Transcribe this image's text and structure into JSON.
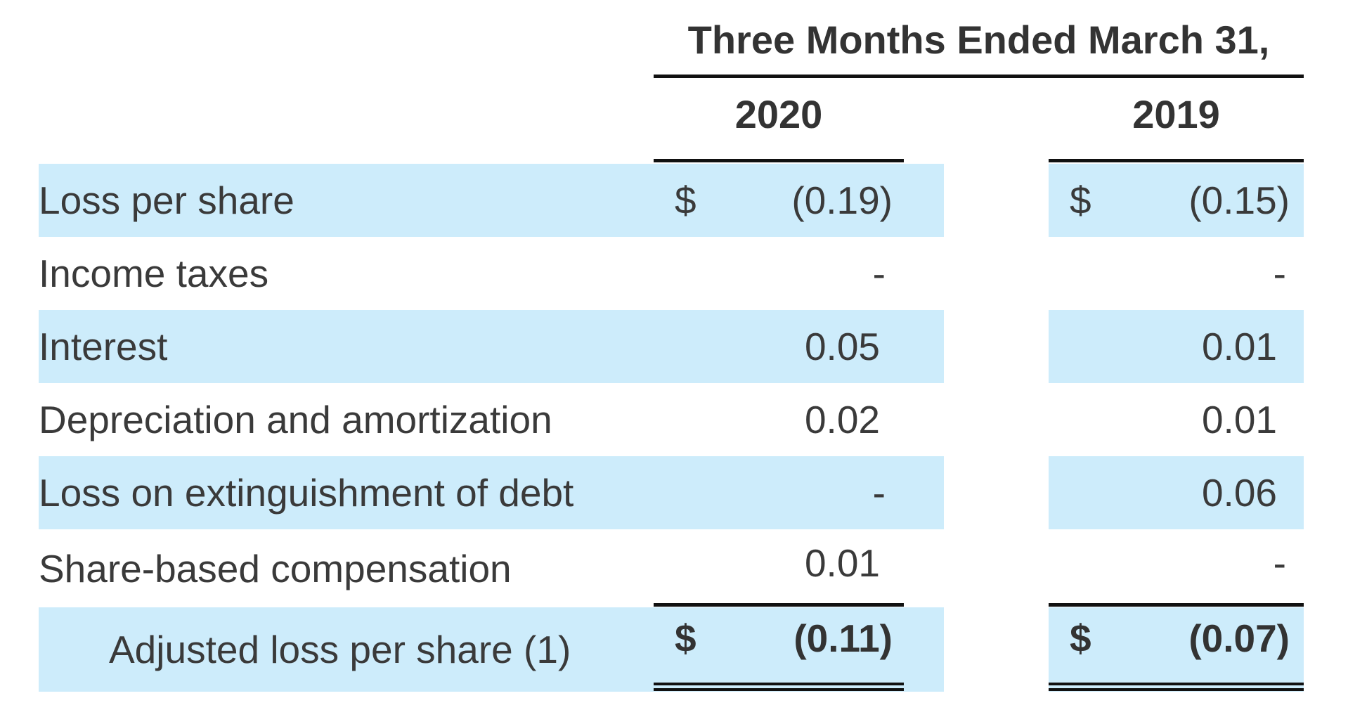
{
  "header": {
    "period_title": "Three Months Ended March 31,",
    "years": [
      "2020",
      "2019"
    ]
  },
  "rows": [
    {
      "label": "Loss per share",
      "currency_2020": "$",
      "value_2020": "(0.19)",
      "currency_2019": "$",
      "value_2019": "(0.15)"
    },
    {
      "label": "Income taxes",
      "value_2020": "-",
      "value_2019": "-"
    },
    {
      "label": "Interest",
      "value_2020": "0.05",
      "value_2019": "0.01"
    },
    {
      "label": "Depreciation and amortization",
      "value_2020": "0.02",
      "value_2019": "0.01"
    },
    {
      "label": "Loss on extinguishment of debt",
      "value_2020": "-",
      "value_2019": "0.06"
    },
    {
      "label": "Share-based compensation",
      "value_2020": "0.01",
      "value_2019": "-"
    }
  ],
  "total": {
    "label": "Adjusted loss per share (1)",
    "currency_2020": "$",
    "value_2020": "(0.11)",
    "currency_2019": "$",
    "value_2019": "(0.07)"
  },
  "colors": {
    "band": "#cdecfb",
    "text": "#3a3a3a",
    "rule": "#111111"
  }
}
